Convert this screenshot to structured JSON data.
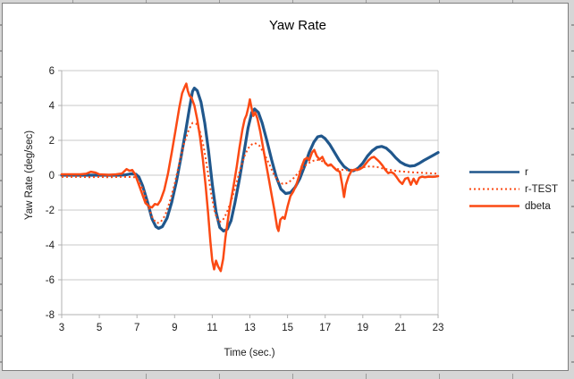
{
  "chart_data": {
    "type": "line",
    "title": "Yaw Rate",
    "xlabel": "Time (sec.)",
    "ylabel": "Yaw Rate (deg/sec)",
    "xlim": [
      3,
      23
    ],
    "ylim": [
      -8,
      6
    ],
    "xticks": [
      3,
      5,
      7,
      9,
      11,
      13,
      15,
      17,
      19,
      21,
      23
    ],
    "yticks": [
      -8,
      -6,
      -4,
      -2,
      0,
      2,
      4,
      6
    ],
    "grid": "horizontal",
    "legend_position": "right",
    "colors": {
      "grid": "#c9c9c9",
      "axis": "#b0b0b0",
      "plot_border": "#c9c9c9",
      "series_blue": "#20578c",
      "series_orange": "#fb4a14"
    },
    "series": [
      {
        "name": "r",
        "color": "#20578c",
        "style": "solid",
        "stroke_width": 3.2,
        "points": [
          [
            3,
            0
          ],
          [
            3.5,
            0
          ],
          [
            4,
            0
          ],
          [
            4.5,
            0
          ],
          [
            5,
            0
          ],
          [
            5.5,
            0
          ],
          [
            6,
            0
          ],
          [
            6.4,
            0.02
          ],
          [
            6.7,
            0.08
          ],
          [
            6.95,
            0.05
          ],
          [
            7.1,
            -0.1
          ],
          [
            7.3,
            -0.6
          ],
          [
            7.55,
            -1.5
          ],
          [
            7.8,
            -2.5
          ],
          [
            8,
            -2.95
          ],
          [
            8.15,
            -3.05
          ],
          [
            8.35,
            -2.95
          ],
          [
            8.6,
            -2.45
          ],
          [
            8.85,
            -1.55
          ],
          [
            9.1,
            -0.35
          ],
          [
            9.35,
            1.1
          ],
          [
            9.6,
            2.6
          ],
          [
            9.8,
            3.9
          ],
          [
            9.95,
            4.8
          ],
          [
            10.05,
            5.0
          ],
          [
            10.2,
            4.85
          ],
          [
            10.4,
            4.2
          ],
          [
            10.6,
            3.0
          ],
          [
            10.8,
            1.4
          ],
          [
            11,
            -0.5
          ],
          [
            11.2,
            -2.1
          ],
          [
            11.4,
            -3.0
          ],
          [
            11.6,
            -3.2
          ],
          [
            11.8,
            -3.1
          ],
          [
            12,
            -2.6
          ],
          [
            12.2,
            -1.6
          ],
          [
            12.45,
            -0.2
          ],
          [
            12.7,
            1.4
          ],
          [
            12.9,
            2.7
          ],
          [
            13.1,
            3.6
          ],
          [
            13.25,
            3.8
          ],
          [
            13.45,
            3.6
          ],
          [
            13.65,
            3.0
          ],
          [
            13.9,
            2.0
          ],
          [
            14.15,
            0.9
          ],
          [
            14.4,
            -0.1
          ],
          [
            14.65,
            -0.8
          ],
          [
            14.9,
            -1.05
          ],
          [
            15.15,
            -1.0
          ],
          [
            15.4,
            -0.7
          ],
          [
            15.65,
            -0.2
          ],
          [
            15.9,
            0.5
          ],
          [
            16.15,
            1.3
          ],
          [
            16.4,
            1.9
          ],
          [
            16.6,
            2.2
          ],
          [
            16.8,
            2.25
          ],
          [
            17,
            2.1
          ],
          [
            17.25,
            1.75
          ],
          [
            17.5,
            1.3
          ],
          [
            17.75,
            0.85
          ],
          [
            18,
            0.5
          ],
          [
            18.25,
            0.3
          ],
          [
            18.5,
            0.25
          ],
          [
            18.75,
            0.4
          ],
          [
            19,
            0.7
          ],
          [
            19.25,
            1.1
          ],
          [
            19.5,
            1.4
          ],
          [
            19.75,
            1.6
          ],
          [
            20,
            1.65
          ],
          [
            20.25,
            1.55
          ],
          [
            20.5,
            1.3
          ],
          [
            20.75,
            1.0
          ],
          [
            21,
            0.75
          ],
          [
            21.25,
            0.6
          ],
          [
            21.5,
            0.52
          ],
          [
            21.75,
            0.55
          ],
          [
            22,
            0.68
          ],
          [
            22.25,
            0.85
          ],
          [
            22.5,
            1.0
          ],
          [
            22.75,
            1.15
          ],
          [
            23,
            1.3
          ]
        ]
      },
      {
        "name": "r-TEST",
        "color": "#fb4a14",
        "style": "dotted",
        "stroke_width": 2,
        "points": [
          [
            3,
            -0.1
          ],
          [
            3.5,
            -0.1
          ],
          [
            4,
            -0.1
          ],
          [
            4.5,
            -0.12
          ],
          [
            5,
            -0.1
          ],
          [
            5.5,
            -0.12
          ],
          [
            6,
            -0.1
          ],
          [
            6.5,
            -0.1
          ],
          [
            6.9,
            -0.12
          ],
          [
            7.1,
            -0.35
          ],
          [
            7.35,
            -0.9
          ],
          [
            7.6,
            -1.8
          ],
          [
            7.85,
            -2.5
          ],
          [
            8.05,
            -2.75
          ],
          [
            8.25,
            -2.7
          ],
          [
            8.5,
            -2.3
          ],
          [
            8.75,
            -1.5
          ],
          [
            9,
            -0.5
          ],
          [
            9.25,
            0.7
          ],
          [
            9.5,
            1.8
          ],
          [
            9.75,
            2.6
          ],
          [
            9.95,
            3.0
          ],
          [
            10.15,
            2.95
          ],
          [
            10.35,
            2.5
          ],
          [
            10.55,
            1.6
          ],
          [
            10.75,
            0.3
          ],
          [
            10.95,
            -1.1
          ],
          [
            11.15,
            -2.2
          ],
          [
            11.35,
            -2.7
          ],
          [
            11.55,
            -2.6
          ],
          [
            11.75,
            -2.2
          ],
          [
            12,
            -1.5
          ],
          [
            12.25,
            -0.6
          ],
          [
            12.5,
            0.4
          ],
          [
            12.75,
            1.2
          ],
          [
            13,
            1.7
          ],
          [
            13.25,
            1.85
          ],
          [
            13.5,
            1.7
          ],
          [
            13.75,
            1.25
          ],
          [
            14,
            0.7
          ],
          [
            14.25,
            0.1
          ],
          [
            14.5,
            -0.35
          ],
          [
            14.75,
            -0.5
          ],
          [
            15,
            -0.45
          ],
          [
            15.25,
            -0.25
          ],
          [
            15.5,
            0.05
          ],
          [
            15.75,
            0.35
          ],
          [
            16,
            0.6
          ],
          [
            16.25,
            0.78
          ],
          [
            16.5,
            0.88
          ],
          [
            16.75,
            0.85
          ],
          [
            17,
            0.72
          ],
          [
            17.25,
            0.55
          ],
          [
            17.5,
            0.42
          ],
          [
            17.75,
            0.33
          ],
          [
            18,
            0.3
          ],
          [
            18.25,
            0.3
          ],
          [
            18.5,
            0.32
          ],
          [
            18.75,
            0.38
          ],
          [
            19,
            0.45
          ],
          [
            19.25,
            0.5
          ],
          [
            19.5,
            0.5
          ],
          [
            19.75,
            0.47
          ],
          [
            20,
            0.4
          ],
          [
            20.25,
            0.35
          ],
          [
            20.5,
            0.3
          ],
          [
            20.75,
            0.25
          ],
          [
            21,
            0.22
          ],
          [
            21.25,
            0.2
          ],
          [
            21.5,
            0.18
          ],
          [
            21.75,
            0.16
          ],
          [
            22,
            0.15
          ],
          [
            22.25,
            0.13
          ],
          [
            22.5,
            0.12
          ],
          [
            22.75,
            0.1
          ],
          [
            23,
            0.1
          ]
        ]
      },
      {
        "name": "dbeta",
        "color": "#fb4a14",
        "style": "solid",
        "stroke_width": 2.5,
        "points": [
          [
            3,
            0.05
          ],
          [
            3.5,
            0.05
          ],
          [
            4,
            0.05
          ],
          [
            4.3,
            0.08
          ],
          [
            4.55,
            0.2
          ],
          [
            4.8,
            0.15
          ],
          [
            5,
            0.05
          ],
          [
            5.5,
            0.02
          ],
          [
            5.9,
            0.05
          ],
          [
            6.2,
            0.1
          ],
          [
            6.45,
            0.35
          ],
          [
            6.6,
            0.25
          ],
          [
            6.75,
            0.3
          ],
          [
            6.9,
            0.05
          ],
          [
            7.05,
            -0.4
          ],
          [
            7.25,
            -1.0
          ],
          [
            7.45,
            -1.6
          ],
          [
            7.65,
            -1.8
          ],
          [
            7.8,
            -1.85
          ],
          [
            7.95,
            -1.65
          ],
          [
            8.1,
            -1.7
          ],
          [
            8.25,
            -1.45
          ],
          [
            8.45,
            -0.85
          ],
          [
            8.65,
            0.1
          ],
          [
            8.85,
            1.3
          ],
          [
            9.05,
            2.6
          ],
          [
            9.25,
            3.9
          ],
          [
            9.4,
            4.7
          ],
          [
            9.55,
            5.1
          ],
          [
            9.62,
            5.25
          ],
          [
            9.7,
            4.85
          ],
          [
            9.8,
            4.55
          ],
          [
            9.9,
            4.45
          ],
          [
            10.05,
            4.0
          ],
          [
            10.2,
            3.2
          ],
          [
            10.35,
            2.2
          ],
          [
            10.5,
            0.9
          ],
          [
            10.65,
            -0.6
          ],
          [
            10.78,
            -2.2
          ],
          [
            10.9,
            -3.8
          ],
          [
            11,
            -4.9
          ],
          [
            11.1,
            -5.4
          ],
          [
            11.2,
            -4.9
          ],
          [
            11.32,
            -5.25
          ],
          [
            11.45,
            -5.5
          ],
          [
            11.58,
            -4.8
          ],
          [
            11.7,
            -3.6
          ],
          [
            11.85,
            -2.4
          ],
          [
            12,
            -1.4
          ],
          [
            12.15,
            -0.5
          ],
          [
            12.3,
            0.5
          ],
          [
            12.45,
            1.6
          ],
          [
            12.6,
            2.6
          ],
          [
            12.72,
            3.2
          ],
          [
            12.82,
            3.45
          ],
          [
            12.92,
            3.9
          ],
          [
            13,
            4.35
          ],
          [
            13.08,
            3.9
          ],
          [
            13.18,
            3.4
          ],
          [
            13.28,
            3.6
          ],
          [
            13.4,
            3.25
          ],
          [
            13.55,
            2.5
          ],
          [
            13.7,
            1.6
          ],
          [
            13.85,
            0.7
          ],
          [
            14,
            -0.2
          ],
          [
            14.15,
            -1.1
          ],
          [
            14.3,
            -2.0
          ],
          [
            14.45,
            -3.0
          ],
          [
            14.52,
            -3.2
          ],
          [
            14.62,
            -2.55
          ],
          [
            14.75,
            -2.4
          ],
          [
            14.85,
            -2.5
          ],
          [
            15,
            -1.8
          ],
          [
            15.15,
            -1.2
          ],
          [
            15.3,
            -0.95
          ],
          [
            15.45,
            -0.6
          ],
          [
            15.6,
            -0.1
          ],
          [
            15.75,
            0.5
          ],
          [
            15.9,
            0.9
          ],
          [
            16.05,
            1.0
          ],
          [
            16.15,
            0.85
          ],
          [
            16.3,
            1.3
          ],
          [
            16.42,
            1.45
          ],
          [
            16.55,
            1.1
          ],
          [
            16.7,
            0.9
          ],
          [
            16.85,
            1.05
          ],
          [
            17,
            0.7
          ],
          [
            17.15,
            0.55
          ],
          [
            17.3,
            0.62
          ],
          [
            17.45,
            0.45
          ],
          [
            17.6,
            0.3
          ],
          [
            17.78,
            0.2
          ],
          [
            17.9,
            -0.5
          ],
          [
            18,
            -1.25
          ],
          [
            18.1,
            -0.55
          ],
          [
            18.25,
            -0.05
          ],
          [
            18.4,
            0.25
          ],
          [
            18.55,
            0.32
          ],
          [
            18.7,
            0.3
          ],
          [
            18.85,
            0.35
          ],
          [
            19,
            0.45
          ],
          [
            19.15,
            0.65
          ],
          [
            19.3,
            0.85
          ],
          [
            19.45,
            1.0
          ],
          [
            19.6,
            1.05
          ],
          [
            19.75,
            0.9
          ],
          [
            19.9,
            0.75
          ],
          [
            20.05,
            0.55
          ],
          [
            20.2,
            0.3
          ],
          [
            20.35,
            0.12
          ],
          [
            20.5,
            0.18
          ],
          [
            20.65,
            0.1
          ],
          [
            20.8,
            -0.12
          ],
          [
            20.95,
            -0.35
          ],
          [
            21.1,
            -0.5
          ],
          [
            21.25,
            -0.2
          ],
          [
            21.4,
            -0.15
          ],
          [
            21.55,
            -0.55
          ],
          [
            21.7,
            -0.2
          ],
          [
            21.85,
            -0.5
          ],
          [
            22,
            -0.15
          ],
          [
            22.15,
            -0.08
          ],
          [
            22.3,
            -0.12
          ],
          [
            22.5,
            -0.08
          ],
          [
            22.7,
            -0.1
          ],
          [
            22.85,
            -0.08
          ],
          [
            23,
            -0.05
          ]
        ]
      }
    ]
  }
}
